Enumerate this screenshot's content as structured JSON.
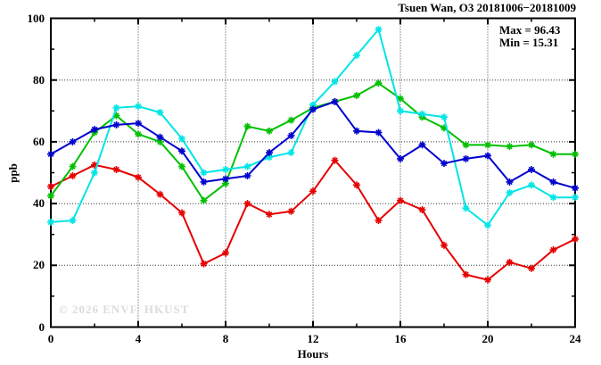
{
  "chart_data": {
    "type": "line",
    "title": "Tsuen Wan, O3 20181006−20181009",
    "xlabel": "Hours",
    "ylabel": "ppb",
    "watermark": "© 2026 ENVF, HKUST",
    "annotations": {
      "max_label": "Max = 96.43",
      "min_label": "Min = 15.31"
    },
    "xlim": [
      0,
      24
    ],
    "ylim": [
      0,
      100
    ],
    "x_ticks": [
      0,
      4,
      8,
      12,
      16,
      20,
      24
    ],
    "x_tick_labels": [
      "0",
      "4",
      "8",
      "12",
      "16",
      "20",
      "24"
    ],
    "x_minor_ticks": [
      2,
      6,
      10,
      14,
      18,
      22
    ],
    "x_gridlines": [
      4,
      8,
      12,
      16,
      20
    ],
    "y_ticks": [
      0,
      20,
      40,
      60,
      80,
      100
    ],
    "y_tick_labels": [
      "0",
      "20",
      "40",
      "60",
      "80",
      "100"
    ],
    "y_minor_ticks": [
      10,
      30,
      50,
      70,
      90
    ],
    "y_gridlines": [
      20,
      40,
      60,
      80
    ],
    "grid": "dotted",
    "legend_position": "none",
    "x": [
      0,
      1,
      2,
      3,
      4,
      5,
      6,
      7,
      8,
      9,
      10,
      11,
      12,
      13,
      14,
      15,
      16,
      17,
      18,
      19,
      20,
      21,
      22,
      23,
      24
    ],
    "series": [
      {
        "name": "red-line",
        "color": "#e60000",
        "values": [
          45.5,
          49,
          52.5,
          51,
          48.5,
          43,
          37,
          20.5,
          24,
          40,
          36.5,
          37.5,
          44,
          54,
          46,
          34.5,
          41,
          38,
          26.5,
          17,
          15.3,
          21,
          19,
          25,
          28.5
        ]
      },
      {
        "name": "green-line",
        "color": "#00c000",
        "values": [
          42.5,
          52,
          63,
          68.5,
          62.5,
          60,
          52,
          41,
          46.5,
          65,
          63.5,
          67,
          71,
          73,
          75,
          79,
          74,
          68,
          64.5,
          59,
          59,
          58.5,
          59,
          56,
          56
        ]
      },
      {
        "name": "cyan-line",
        "color": "#00e5e5",
        "values": [
          34,
          34.5,
          50,
          71,
          71.5,
          69.5,
          61,
          50,
          51,
          52,
          55,
          56.5,
          72,
          79.5,
          88,
          96.4,
          70,
          69,
          68,
          38.5,
          33,
          43.5,
          46,
          42,
          42
        ]
      },
      {
        "name": "blue-line",
        "color": "#0000cd",
        "values": [
          56,
          60,
          64,
          65.5,
          66,
          61.5,
          57,
          47,
          48,
          49,
          56.5,
          62,
          70.5,
          73,
          63.5,
          63,
          54.5,
          59,
          53,
          54.5,
          55.5,
          47,
          51,
          47,
          45
        ]
      }
    ]
  }
}
